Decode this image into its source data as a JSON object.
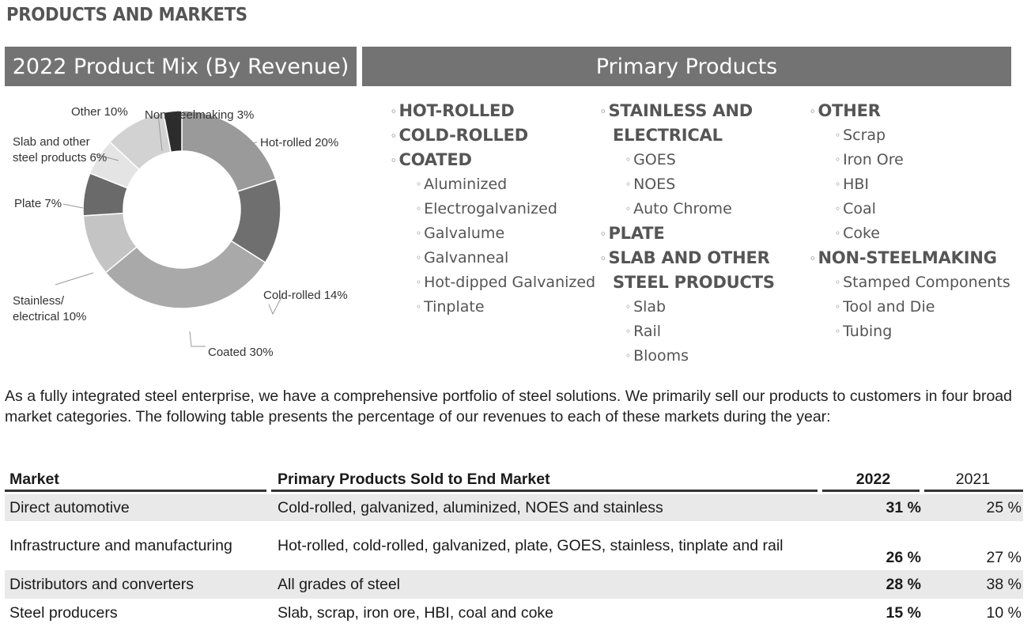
{
  "section_title": "PRODUCTS AND MARKETS",
  "left_header": "2022 Product Mix (By Revenue)",
  "right_header": "Primary Products",
  "chart_data": {
    "type": "pie",
    "title": "2022 Product Mix (By Revenue)",
    "donut": true,
    "slices": [
      {
        "label": "Hot-rolled 20%",
        "value": 20,
        "color": "#9a9a9a"
      },
      {
        "label": "Cold-rolled 14%",
        "value": 14,
        "color": "#6f6f6f"
      },
      {
        "label": "Coated 30%",
        "value": 30,
        "color": "#a9a9a9"
      },
      {
        "label": "Stainless/\nelectrical 10%",
        "value": 10,
        "color": "#c4c4c4"
      },
      {
        "label": "Plate 7%",
        "value": 7,
        "color": "#6a6a6a"
      },
      {
        "label": "Slab and other\nsteel products 6%",
        "value": 6,
        "color": "#e4e4e4"
      },
      {
        "label": "Other 10%",
        "value": 10,
        "color": "#d2d2d2"
      },
      {
        "label": "Non-steelmaking 3%",
        "value": 3,
        "color": "#2c2c2c"
      }
    ]
  },
  "products": {
    "columns": [
      [
        {
          "text": "HOT-ROLLED",
          "kind": "head"
        },
        {
          "text": "COLD-ROLLED",
          "kind": "head"
        },
        {
          "text": "COATED",
          "kind": "head"
        },
        {
          "text": "Aluminized",
          "kind": "sub"
        },
        {
          "text": "Electrogalvanized",
          "kind": "sub"
        },
        {
          "text": "Galvalume",
          "kind": "sub"
        },
        {
          "text": "Galvanneal",
          "kind": "sub"
        },
        {
          "text": "Hot-dipped Galvanized",
          "kind": "sub"
        },
        {
          "text": "Tinplate",
          "kind": "sub"
        }
      ],
      [
        {
          "text": "STAINLESS AND",
          "kind": "head"
        },
        {
          "text": "ELECTRICAL",
          "kind": "cont"
        },
        {
          "text": "GOES",
          "kind": "sub"
        },
        {
          "text": "NOES",
          "kind": "sub"
        },
        {
          "text": "Auto Chrome",
          "kind": "sub"
        },
        {
          "text": "PLATE",
          "kind": "head"
        },
        {
          "text": "SLAB AND OTHER",
          "kind": "head"
        },
        {
          "text": "STEEL PRODUCTS",
          "kind": "cont"
        },
        {
          "text": "Slab",
          "kind": "sub"
        },
        {
          "text": "Rail",
          "kind": "sub"
        },
        {
          "text": "Blooms",
          "kind": "sub"
        }
      ],
      [
        {
          "text": "OTHER",
          "kind": "head"
        },
        {
          "text": "Scrap",
          "kind": "sub"
        },
        {
          "text": "Iron Ore",
          "kind": "sub"
        },
        {
          "text": "HBI",
          "kind": "sub"
        },
        {
          "text": "Coal",
          "kind": "sub"
        },
        {
          "text": "Coke",
          "kind": "sub"
        },
        {
          "text": "NON-STEELMAKING",
          "kind": "head"
        },
        {
          "text": "Stamped Components",
          "kind": "sub"
        },
        {
          "text": "Tool and Die",
          "kind": "sub"
        },
        {
          "text": "Tubing",
          "kind": "sub"
        }
      ]
    ]
  },
  "paragraph": "As a fully integrated steel enterprise, we have a comprehensive portfolio of steel solutions.  We primarily sell our products to customers in four broad market categories.  The following table presents the percentage of our revenues to each of these markets during the year:",
  "table": {
    "headers": [
      "Market",
      "Primary Products Sold to End Market",
      "2022",
      "2021"
    ],
    "rows": [
      [
        "Direct automotive",
        "Cold-rolled, galvanized, aluminized, NOES and stainless",
        "31 %",
        "25 %"
      ],
      [
        "Infrastructure and manufacturing",
        "Hot-rolled, cold-rolled, galvanized, plate, GOES, stainless, tinplate and rail",
        "26 %",
        "27 %"
      ],
      [
        "Distributors and converters",
        "All grades of steel",
        "28 %",
        "38 %"
      ],
      [
        "Steel producers",
        "Slab, scrap, iron ore, HBI, coal and coke",
        "15 %",
        "10 %"
      ]
    ]
  }
}
